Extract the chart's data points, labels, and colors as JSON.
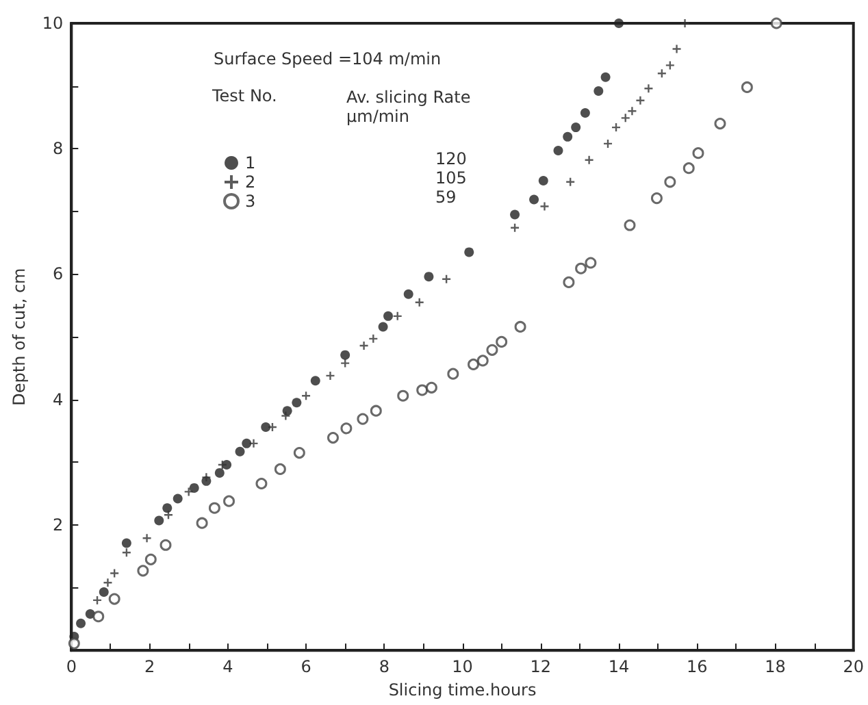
{
  "chart_data": {
    "type": "scatter",
    "title": "Surface Speed =104 m/min",
    "xlabel": "Slicing time.hours",
    "ylabel": "Depth of cut, cm",
    "legend_title": "Test No.",
    "annotations": [
      "Av. slicing Rate\nμm/min",
      "120",
      "105",
      "59"
    ],
    "xlim": [
      0,
      20
    ],
    "ylim": [
      0,
      10
    ],
    "xticks": [
      0,
      {
        "value": 1,
        "label": null
      },
      2,
      {
        "value": 3,
        "label": null
      },
      4,
      {
        "value": 5,
        "label": null
      },
      6,
      {
        "value": 7,
        "label": null
      },
      8,
      {
        "value": 9,
        "label": null
      },
      10,
      {
        "value": 11,
        "label": null
      },
      12,
      {
        "value": 13,
        "label": null
      },
      14,
      {
        "value": 15,
        "label": null
      },
      16,
      {
        "value": 17,
        "label": null
      },
      18,
      {
        "value": 19,
        "label": null
      },
      20
    ],
    "yticks": [
      {
        "value": 0,
        "label": null
      },
      {
        "value": 1,
        "label": null
      },
      2,
      {
        "value": 3,
        "label": null
      },
      4,
      {
        "value": 5,
        "label": null
      },
      6,
      {
        "value": 7,
        "label": null
      },
      8,
      {
        "value": 9,
        "label": null
      },
      10
    ],
    "grid": false,
    "legend": "top left",
    "series": [
      {
        "name": "1",
        "color": "#222222",
        "marker": "circle",
        "x": [
          0.07,
          0.24,
          0.48,
          0.83,
          1.41,
          2.24,
          2.45,
          2.72,
          3.14,
          3.45,
          3.79,
          3.97,
          4.31,
          4.48,
          4.97,
          5.52,
          5.76,
          6.24,
          7.0,
          7.97,
          8.1,
          8.62,
          9.14,
          10.17,
          11.34,
          11.83,
          12.07,
          12.45,
          12.69,
          12.9,
          13.14,
          13.48,
          13.66,
          14.0
        ],
        "values": [
          0.22,
          0.43,
          0.58,
          0.93,
          1.71,
          2.07,
          2.27,
          2.42,
          2.59,
          2.7,
          2.83,
          2.96,
          3.17,
          3.3,
          3.56,
          3.82,
          3.95,
          4.3,
          4.71,
          5.16,
          5.33,
          5.68,
          5.96,
          6.35,
          6.95,
          7.19,
          7.49,
          7.97,
          8.19,
          8.34,
          8.57,
          8.92,
          9.14,
          10.0
        ]
      },
      {
        "name": "2",
        "color": "#333333",
        "marker": "cross",
        "x": [
          0.66,
          0.93,
          1.1,
          1.41,
          1.93,
          2.48,
          3.0,
          3.45,
          3.86,
          4.66,
          5.14,
          5.48,
          6.0,
          6.62,
          7.0,
          7.48,
          7.72,
          8.34,
          8.9,
          9.59,
          11.34,
          12.1,
          12.76,
          13.24,
          13.72,
          13.93,
          14.17,
          14.34,
          14.55,
          14.76,
          15.1,
          15.31,
          15.48,
          15.69
        ],
        "values": [
          0.8,
          1.08,
          1.23,
          1.56,
          1.79,
          2.16,
          2.53,
          2.76,
          2.96,
          3.3,
          3.56,
          3.74,
          4.06,
          4.38,
          4.58,
          4.86,
          4.97,
          5.33,
          5.55,
          5.92,
          6.74,
          7.08,
          7.47,
          7.82,
          8.08,
          8.34,
          8.49,
          8.6,
          8.77,
          8.96,
          9.2,
          9.33,
          9.59,
          10.0
        ]
      },
      {
        "name": "3",
        "color": "#444444",
        "marker": "open circle",
        "x": [
          0.07,
          0.69,
          1.1,
          1.83,
          2.03,
          2.41,
          3.34,
          3.66,
          4.03,
          4.86,
          5.34,
          5.83,
          6.69,
          7.03,
          7.45,
          7.79,
          8.48,
          8.97,
          9.21,
          9.76,
          10.28,
          10.52,
          10.76,
          11.0,
          11.48,
          12.72,
          13.03,
          13.28,
          14.28,
          14.97,
          15.31,
          15.79,
          16.03,
          16.59,
          17.28,
          18.03
        ],
        "values": [
          0.11,
          0.54,
          0.82,
          1.27,
          1.45,
          1.68,
          2.03,
          2.27,
          2.38,
          2.66,
          2.89,
          3.15,
          3.39,
          3.54,
          3.69,
          3.82,
          4.06,
          4.15,
          4.19,
          4.41,
          4.56,
          4.62,
          4.79,
          4.92,
          5.16,
          5.87,
          6.09,
          6.18,
          6.78,
          7.21,
          7.47,
          7.69,
          7.93,
          8.4,
          8.98,
          10.0
        ]
      }
    ]
  }
}
